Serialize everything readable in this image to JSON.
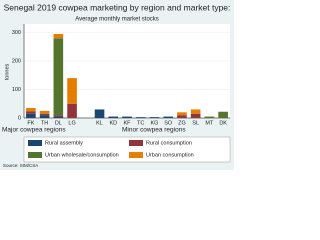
{
  "chart_data": {
    "type": "stacked_bar",
    "title": "Senegal 2019 cowpea marketing by region and market type:",
    "subtitle": "Average monthly market stocks",
    "y_label": "tonnes",
    "categories": [
      "FK",
      "TH",
      "DL",
      "LG",
      null,
      "KL",
      "KD",
      "KF",
      "TC",
      "KG",
      "SO",
      "ZG",
      "SL",
      "MT",
      "DK"
    ],
    "series": [
      {
        "name": "Rural assembly",
        "color": "#1a476f",
        "values": [
          15,
          10,
          5,
          0,
          null,
          30,
          5,
          5,
          3,
          3,
          5,
          0,
          0,
          0,
          0
        ]
      },
      {
        "name": "Rural consumption",
        "color": "#90353b",
        "values": [
          8,
          5,
          5,
          50,
          null,
          0,
          0,
          0,
          0,
          0,
          0,
          10,
          15,
          0,
          0
        ]
      },
      {
        "name": "Urban wholesale/consumption",
        "color": "#55752f",
        "values": [
          0,
          0,
          270,
          0,
          null,
          0,
          0,
          0,
          0,
          0,
          0,
          0,
          0,
          5,
          22
        ]
      },
      {
        "name": "Urban consumption",
        "color": "#e37e00",
        "values": [
          12,
          10,
          15,
          90,
          null,
          0,
          0,
          0,
          0,
          0,
          0,
          10,
          15,
          0,
          0
        ]
      }
    ],
    "ylim": [
      0,
      330
    ],
    "yticks": [
      0,
      100,
      200,
      300
    ],
    "grid": true,
    "annotations": [
      "Major cowpea regions",
      "Minor cowpea regions"
    ],
    "source": "Source: SIM/CSA"
  }
}
